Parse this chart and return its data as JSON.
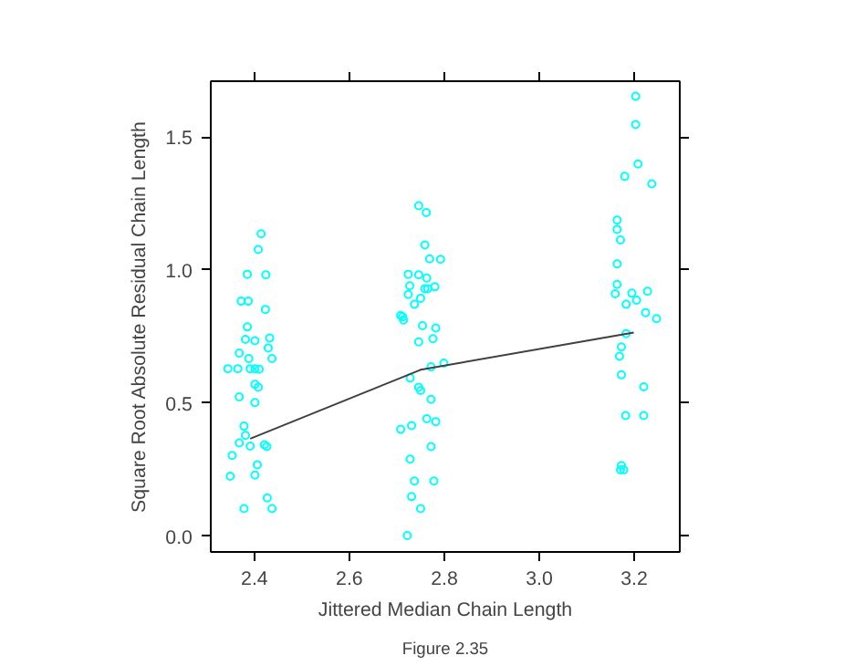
{
  "chart_data": {
    "type": "scatter",
    "xlabel": "Jittered Median Chain Length",
    "ylabel": "Square Root Absolute Residual Chain Length",
    "annotations": [
      "Figure 2.35"
    ],
    "xlim": [
      2.308,
      3.296
    ],
    "ylim": [
      -0.06,
      1.71
    ],
    "xticks": [
      2.4,
      2.6,
      2.8,
      {
        "value": 3,
        "label": "3.0"
      },
      3.2
    ],
    "yticks": [
      {
        "value": 0,
        "label": "0.0"
      },
      0.5,
      {
        "value": 1,
        "label": "1.0"
      },
      1.5
    ],
    "grid": false,
    "series": [
      {
        "marker": "circle",
        "color": "#00ffff",
        "x": [
          2.414,
          2.408,
          2.385,
          2.424,
          2.372,
          2.387,
          2.423,
          2.385,
          2.432,
          2.429,
          2.368,
          2.381,
          2.401,
          2.388,
          2.437,
          2.344,
          2.365,
          2.391,
          2.41,
          2.401,
          2.368,
          2.401,
          2.408,
          2.401,
          2.378,
          2.381,
          2.368,
          2.391,
          2.421,
          2.426,
          2.353,
          2.406,
          2.349,
          2.401,
          2.427,
          2.437,
          2.378,
          2.746,
          2.762,
          2.759,
          2.769,
          2.792,
          2.724,
          2.746,
          2.763,
          2.727,
          2.759,
          2.78,
          2.724,
          2.75,
          2.737,
          2.708,
          2.714,
          2.754,
          2.782,
          2.776,
          2.746,
          2.799,
          2.772,
          2.728,
          2.746,
          2.75,
          2.772,
          2.763,
          2.782,
          2.708,
          2.731,
          2.772,
          2.728,
          2.737,
          2.778,
          2.731,
          2.75,
          2.722,
          2.712,
          2.765,
          3.203,
          3.203,
          3.208,
          3.18,
          3.237,
          3.164,
          3.164,
          3.171,
          3.164,
          3.164,
          3.16,
          3.195,
          3.228,
          3.205,
          3.183,
          3.224,
          3.247,
          3.183,
          3.173,
          3.169,
          3.173,
          3.22,
          3.182,
          3.22,
          3.173,
          3.171,
          3.178
        ],
        "values": [
          1.136,
          1.077,
          0.984,
          0.982,
          0.883,
          0.883,
          0.852,
          0.786,
          0.744,
          0.707,
          0.688,
          0.739,
          0.734,
          0.667,
          0.667,
          0.629,
          0.629,
          0.629,
          0.627,
          0.629,
          0.523,
          0.57,
          0.559,
          0.502,
          0.413,
          0.378,
          0.35,
          0.338,
          0.343,
          0.336,
          0.303,
          0.268,
          0.225,
          0.229,
          0.143,
          0.103,
          0.103,
          1.242,
          1.216,
          1.094,
          1.042,
          1.04,
          0.984,
          0.982,
          0.97,
          0.941,
          0.93,
          0.937,
          0.908,
          0.894,
          0.871,
          0.829,
          0.812,
          0.791,
          0.782,
          0.742,
          0.73,
          0.65,
          0.636,
          0.594,
          0.559,
          0.547,
          0.514,
          0.441,
          0.43,
          0.401,
          0.415,
          0.336,
          0.289,
          0.207,
          0.207,
          0.148,
          0.103,
          0.002,
          0.824,
          0.93,
          1.653,
          1.547,
          1.399,
          1.352,
          1.324,
          1.188,
          1.153,
          1.113,
          1.023,
          0.946,
          0.911,
          0.913,
          0.92,
          0.887,
          0.871,
          0.84,
          0.817,
          0.761,
          0.711,
          0.676,
          0.606,
          0.561,
          0.453,
          0.453,
          0.265,
          0.249,
          0.249
        ]
      },
      {
        "type": "line",
        "color": "#404040",
        "x": [
          2.391,
          2.75,
          3.199
        ],
        "values": [
          0.366,
          0.625,
          0.765
        ]
      }
    ]
  }
}
